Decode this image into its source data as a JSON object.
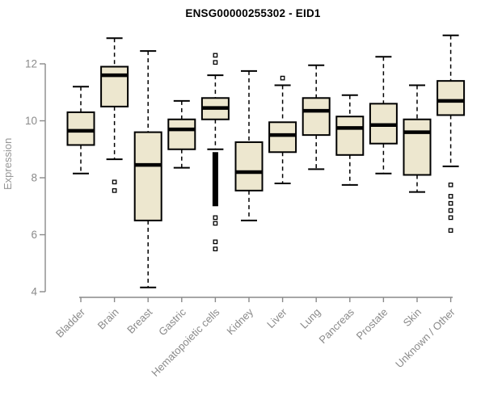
{
  "title": "ENSG00000255302 - EID1",
  "chart_data": {
    "type": "boxplot",
    "title": "ENSG00000255302 - EID1",
    "ylabel": "Expression",
    "xlabel": "",
    "yticks": [
      4,
      6,
      8,
      10,
      12
    ],
    "ylim": [
      3.6,
      13.2
    ],
    "grid": false,
    "legend": "none",
    "colors": {
      "box_fill": "#ede7cf",
      "box_stroke": "#000000",
      "median": "#000000",
      "whisker": "#000000",
      "axis": "#8a8a8a",
      "tick_label": "#8a8a8a",
      "title": "#000000",
      "background": "#ffffff"
    },
    "categories": [
      "Bladder",
      "Brain",
      "Breast",
      "Gastric",
      "Hematopoietic cells",
      "Kidney",
      "Liver",
      "Lung",
      "Pancreas",
      "Prostate",
      "Skin",
      "Unknown / Other"
    ],
    "boxes": [
      {
        "category": "Bladder",
        "whisker_low": 8.15,
        "q1": 9.15,
        "median": 9.65,
        "q3": 10.3,
        "whisker_high": 11.2,
        "outliers": []
      },
      {
        "category": "Brain",
        "whisker_low": 8.65,
        "q1": 10.5,
        "median": 11.6,
        "q3": 11.9,
        "whisker_high": 12.9,
        "outliers": [
          7.85,
          7.55
        ]
      },
      {
        "category": "Breast",
        "whisker_low": 4.15,
        "q1": 6.5,
        "median": 8.45,
        "q3": 9.6,
        "whisker_high": 12.45,
        "outliers": []
      },
      {
        "category": "Gastric",
        "whisker_low": 8.35,
        "q1": 9.0,
        "median": 9.7,
        "q3": 10.05,
        "whisker_high": 10.7,
        "outliers": []
      },
      {
        "category": "Hematopoietic cells",
        "whisker_low": 9.0,
        "q1": 10.05,
        "median": 10.45,
        "q3": 10.8,
        "whisker_high": 11.6,
        "outliers": [
          12.3,
          12.05,
          6.6,
          6.4,
          5.75,
          5.5
        ],
        "outlier_dense_band": [
          7.0,
          8.9
        ]
      },
      {
        "category": "Kidney",
        "whisker_low": 6.5,
        "q1": 7.55,
        "median": 8.2,
        "q3": 9.25,
        "whisker_high": 11.75,
        "outliers": []
      },
      {
        "category": "Liver",
        "whisker_low": 7.8,
        "q1": 8.9,
        "median": 9.5,
        "q3": 9.95,
        "whisker_high": 11.25,
        "outliers": [
          11.5
        ]
      },
      {
        "category": "Lung",
        "whisker_low": 8.3,
        "q1": 9.5,
        "median": 10.35,
        "q3": 10.8,
        "whisker_high": 11.95,
        "outliers": []
      },
      {
        "category": "Pancreas",
        "whisker_low": 7.75,
        "q1": 8.8,
        "median": 9.75,
        "q3": 10.15,
        "whisker_high": 10.9,
        "outliers": []
      },
      {
        "category": "Prostate",
        "whisker_low": 8.15,
        "q1": 9.2,
        "median": 9.85,
        "q3": 10.6,
        "whisker_high": 12.25,
        "outliers": []
      },
      {
        "category": "Skin",
        "whisker_low": 7.5,
        "q1": 8.1,
        "median": 9.6,
        "q3": 10.05,
        "whisker_high": 11.25,
        "outliers": []
      },
      {
        "category": "Unknown / Other",
        "whisker_low": 8.4,
        "q1": 10.2,
        "median": 10.7,
        "q3": 11.4,
        "whisker_high": 13.0,
        "outliers": [
          7.75,
          7.35,
          7.1,
          6.85,
          6.6,
          6.15
        ]
      }
    ]
  }
}
